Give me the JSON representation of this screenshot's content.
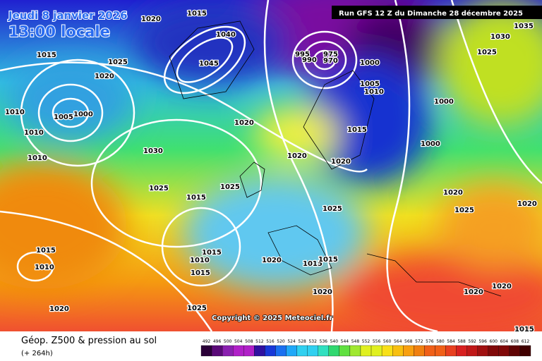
{
  "header": {
    "date": "Jeudi 8 janvier 2026",
    "time": "13:00 locale",
    "run": "Run GFS 12 Z du Dimanche 28 décembre 2025"
  },
  "copyright": "Copyright © 2025 Meteociel.fr",
  "footer": {
    "title": "Géop. Z500 & pression au sol",
    "lead": "(+ 264h)"
  },
  "legend": {
    "levels": [
      492,
      496,
      500,
      504,
      508,
      512,
      516,
      520,
      524,
      528,
      532,
      536,
      540,
      544,
      548,
      552,
      556,
      560,
      564,
      568,
      572,
      576,
      580,
      584,
      588,
      592,
      596,
      600,
      604,
      608,
      612
    ]
  },
  "isobar_labels": [
    "1015",
    "1020",
    "1040",
    "1045",
    "995",
    "990",
    "975",
    "970",
    "1000",
    "1005",
    "1010",
    "1030",
    "1035",
    "1025",
    "1000",
    "1015",
    "1000",
    "1020",
    "1020",
    "1025",
    "1015",
    "1025",
    "1020",
    "1010",
    "1005",
    "1000",
    "1010",
    "1020",
    "1030",
    "1010",
    "1020",
    "1020",
    "1025",
    "1025",
    "1015",
    "1025",
    "1015",
    "1010",
    "1015",
    "1010",
    "1015",
    "1020",
    "1015",
    "1015",
    "1020",
    "1020",
    "1020",
    "1020",
    "1025",
    "1015"
  ]
}
